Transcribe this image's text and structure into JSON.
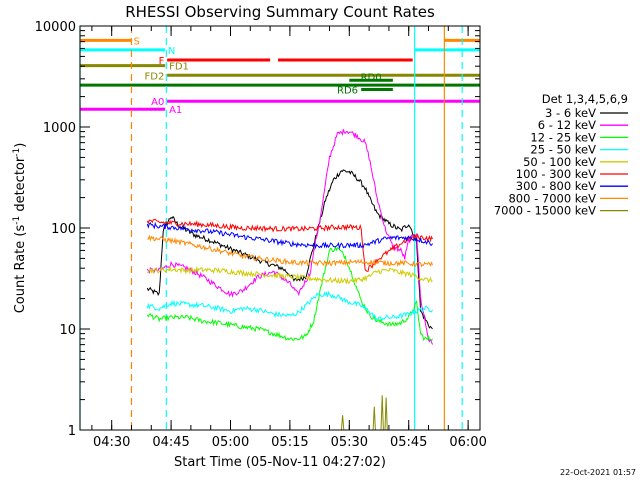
{
  "chart_data": {
    "type": "line",
    "title": "RHESSI Observing Summary Count Rates",
    "xlabel": "Start Time (05-Nov-11 04:27:02)",
    "ylabel_main": "Count Rate (s",
    "ylabel_sup": "-1",
    "ylabel_mid": " detector",
    "ylabel_end": ")",
    "yscale": "log",
    "ylim": [
      1,
      10000
    ],
    "xlim_minutes": [
      -5,
      96
    ],
    "x_tick_labels": [
      "04:30",
      "04:45",
      "05:00",
      "05:15",
      "05:30",
      "05:45",
      "06:00"
    ],
    "x_tick_minutes": [
      3,
      18,
      33,
      48,
      63,
      78,
      93
    ],
    "y_tick_labels": [
      "1",
      "10",
      "100",
      "1000",
      "10000"
    ],
    "y_tick_values": [
      1,
      10,
      100,
      1000,
      10000
    ],
    "legend_title": "Det 1,3,4,5,6,9",
    "legend_position": "right",
    "timestamp": "22-Oct-2021 01:57",
    "series": [
      {
        "name": "3 - 6 keV",
        "color": "#000000",
        "x": [
          12,
          15,
          16,
          18,
          20,
          24,
          28,
          33,
          38,
          42,
          46,
          48,
          49,
          52,
          55,
          57,
          59,
          61,
          63,
          65,
          67,
          68,
          70,
          73,
          76,
          78,
          80,
          81,
          83,
          84
        ],
        "y": [
          25,
          22,
          95,
          130,
          105,
          85,
          75,
          62,
          52,
          45,
          40,
          35,
          30,
          33,
          95,
          190,
          300,
          370,
          360,
          310,
          250,
          200,
          140,
          110,
          95,
          110,
          75,
          15,
          11,
          10
        ]
      },
      {
        "name": "6 - 12 keV",
        "color": "#ff00ff",
        "x": [
          12,
          15,
          18,
          22,
          26,
          30,
          33,
          36,
          40,
          44,
          48,
          50,
          53,
          56,
          58,
          60,
          62,
          63,
          65,
          67,
          68,
          70,
          72,
          74,
          76,
          77,
          78,
          80,
          81,
          83,
          84
        ],
        "y": [
          38,
          38,
          44,
          40,
          33,
          26,
          22,
          24,
          33,
          37,
          28,
          22,
          35,
          150,
          500,
          850,
          920,
          900,
          820,
          700,
          500,
          200,
          100,
          65,
          60,
          50,
          75,
          90,
          20,
          8,
          7
        ]
      },
      {
        "name": "12 - 25 keV",
        "color": "#00ff00",
        "x": [
          12,
          15,
          18,
          22,
          26,
          30,
          33,
          36,
          40,
          44,
          48,
          50,
          52,
          54,
          56,
          58,
          60,
          62,
          64,
          66,
          68,
          70,
          72,
          74,
          76,
          78,
          80,
          81,
          82,
          84
        ],
        "y": [
          14,
          12.5,
          13,
          13,
          12,
          11.5,
          11,
          10.5,
          10,
          9,
          8,
          8,
          8.5,
          12,
          28,
          60,
          63,
          52,
          32,
          19,
          14,
          12,
          11.5,
          11,
          11.5,
          13,
          18,
          9,
          8,
          8
        ]
      },
      {
        "name": "25 - 50 keV",
        "color": "#00ffff",
        "x": [
          12,
          15,
          18,
          22,
          26,
          30,
          33,
          36,
          40,
          44,
          48,
          50,
          52,
          55,
          58,
          60,
          62,
          64,
          66,
          68,
          70,
          72,
          74,
          76,
          78,
          80,
          82,
          84
        ],
        "y": [
          17,
          16,
          18,
          17.5,
          17,
          16,
          15,
          16,
          15.5,
          14,
          13.5,
          14.5,
          17,
          22,
          22,
          21,
          19,
          18,
          17,
          15,
          12.5,
          13,
          13,
          13.5,
          14,
          15,
          16,
          15.5
        ]
      },
      {
        "name": "50 - 100 keV",
        "color": "#cccc00",
        "x": [
          12,
          15,
          18,
          22,
          26,
          30,
          33,
          36,
          40,
          44,
          48,
          52,
          56,
          60,
          64,
          66,
          68,
          70,
          72,
          74,
          76,
          78,
          80,
          82,
          84
        ],
        "y": [
          38,
          38,
          39,
          38,
          38.5,
          38,
          37,
          36,
          35,
          34,
          33,
          32,
          31,
          30,
          30,
          31,
          33,
          37,
          38,
          38,
          36,
          35,
          33,
          31,
          30
        ]
      },
      {
        "name": "100 - 300 keV",
        "color": "#ff0000",
        "x": [
          12,
          15,
          18,
          22,
          26,
          30,
          33,
          36,
          40,
          44,
          48,
          52,
          56,
          60,
          64,
          66,
          67,
          68,
          70,
          72,
          74,
          76,
          78,
          80,
          82,
          84
        ],
        "y": [
          118,
          114,
          112,
          110,
          108,
          105,
          102,
          100,
          100,
          98,
          98,
          98,
          100,
          102,
          102,
          100,
          38,
          40,
          48,
          55,
          62,
          70,
          78,
          82,
          80,
          78
        ]
      },
      {
        "name": "300 - 800 keV",
        "color": "#0000ff",
        "x": [
          12,
          15,
          18,
          22,
          26,
          30,
          33,
          36,
          40,
          44,
          48,
          52,
          56,
          60,
          64,
          66,
          68,
          70,
          72,
          74,
          76,
          78,
          80,
          82,
          84
        ],
        "y": [
          108,
          104,
          102,
          98,
          94,
          90,
          86,
          82,
          78,
          74,
          70,
          68,
          67,
          67,
          68,
          67,
          70,
          74,
          78,
          80,
          80,
          80,
          78,
          74,
          70
        ]
      },
      {
        "name": "800 - 7000 keV",
        "color": "#ff8800",
        "x": [
          12,
          15,
          18,
          22,
          26,
          30,
          33,
          36,
          40,
          44,
          48,
          52,
          56,
          60,
          64,
          68,
          72,
          76,
          80,
          84
        ],
        "y": [
          80,
          78,
          75,
          70,
          65,
          60,
          56,
          53,
          50,
          48,
          46,
          45,
          45,
          45,
          46,
          46,
          45,
          45,
          44,
          43
        ]
      },
      {
        "name": "7000 - 15000 keV",
        "color": "#888800",
        "x": [
          61,
          61.3,
          61.6,
          69,
          69.3,
          69.6,
          71,
          71.3,
          71.6,
          72,
          72.3,
          72.6
        ],
        "y": [
          1,
          1.4,
          1,
          1,
          1.7,
          1,
          1,
          2.2,
          1,
          1,
          2.1,
          1
        ]
      }
    ],
    "flags": [
      {
        "label": "S",
        "color": "#ff8800",
        "y": 7200,
        "segments": [
          [
            -5,
            8
          ],
          [
            87,
            96
          ]
        ],
        "label_at": 8.5,
        "label_side": "right"
      },
      {
        "label": "N",
        "color": "#00ffff",
        "y": 5800,
        "segments": [
          [
            -5,
            16.5
          ],
          [
            79.5,
            96
          ]
        ],
        "label_at": 17.2,
        "label_side": "right"
      },
      {
        "label": "F",
        "color": "#ff0000",
        "y": 4600,
        "segments": [
          [
            17,
            43
          ],
          [
            45,
            79
          ]
        ],
        "label_at": 16.3,
        "label_side": "left"
      },
      {
        "label": "FD1",
        "color": "#888800",
        "y": 4050,
        "segments": [
          [
            -5,
            16.5
          ]
        ],
        "label_at": 17.5,
        "label_side": "right"
      },
      {
        "label": "FD2",
        "color": "#888800",
        "y": 3250,
        "segments": [
          [
            17,
            96
          ]
        ],
        "label_at": 16.3,
        "label_side": "left"
      },
      {
        "label": "RD0",
        "color": "#007700",
        "y": 2900,
        "segments": [
          [
            63,
            74
          ]
        ],
        "label_at": 68.5,
        "label_side": "center"
      },
      {
        "label": "RD6",
        "color": "#007700",
        "y": 2600,
        "segments": [
          [
            -5,
            96
          ]
        ],
        "label_at": 0,
        "label_side": "none"
      },
      {
        "label": "RD6",
        "color": "#007700",
        "y": 2350,
        "segments": [
          [
            66,
            74
          ]
        ],
        "label_at": 65.2,
        "label_side": "left"
      },
      {
        "label": "A0",
        "color": "#ff00ff",
        "y": 1800,
        "segments": [
          [
            17,
            96
          ]
        ],
        "label_at": 16.3,
        "label_side": "left"
      },
      {
        "label": "A1",
        "color": "#ff00ff",
        "y": 1500,
        "segments": [
          [
            -5,
            16.5
          ]
        ],
        "label_at": 17.5,
        "label_side": "right"
      }
    ],
    "vlines": [
      {
        "x": 8,
        "color": "#ff8800",
        "dash": true
      },
      {
        "x": 16.8,
        "color": "#00ffff",
        "dash": true
      },
      {
        "x": 79.5,
        "color": "#00ffff",
        "dash": false
      },
      {
        "x": 87,
        "color": "#ff8800",
        "dash": false
      },
      {
        "x": 91.5,
        "color": "#00ffff",
        "dash": true
      },
      {
        "x": -5,
        "color": "#00ffff",
        "dash": false
      }
    ]
  }
}
